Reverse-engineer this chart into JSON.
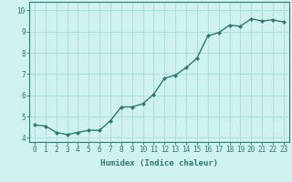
{
  "x": [
    0,
    1,
    2,
    3,
    4,
    5,
    6,
    7,
    8,
    9,
    10,
    11,
    12,
    13,
    14,
    15,
    16,
    17,
    18,
    19,
    20,
    21,
    22,
    23
  ],
  "y": [
    4.6,
    4.55,
    4.25,
    4.15,
    4.25,
    4.35,
    4.35,
    4.8,
    5.45,
    5.45,
    5.6,
    6.05,
    6.8,
    6.95,
    7.3,
    7.75,
    8.8,
    8.95,
    9.3,
    9.25,
    9.6,
    9.5,
    9.55,
    9.45
  ],
  "line_color": "#2d7a6e",
  "marker": "D",
  "marker_size": 2.0,
  "line_width": 1.0,
  "bg_color": "#cff2ee",
  "grid_color": "#aeddd8",
  "xlabel": "Humidex (Indice chaleur)",
  "ylim": [
    3.8,
    10.4
  ],
  "xlim": [
    -0.5,
    23.5
  ],
  "yticks": [
    4,
    5,
    6,
    7,
    8,
    9,
    10
  ],
  "xticks": [
    0,
    1,
    2,
    3,
    4,
    5,
    6,
    7,
    8,
    9,
    10,
    11,
    12,
    13,
    14,
    15,
    16,
    17,
    18,
    19,
    20,
    21,
    22,
    23
  ],
  "tick_color": "#2d7a6e",
  "label_fontsize": 6.5,
  "tick_fontsize": 5.5
}
